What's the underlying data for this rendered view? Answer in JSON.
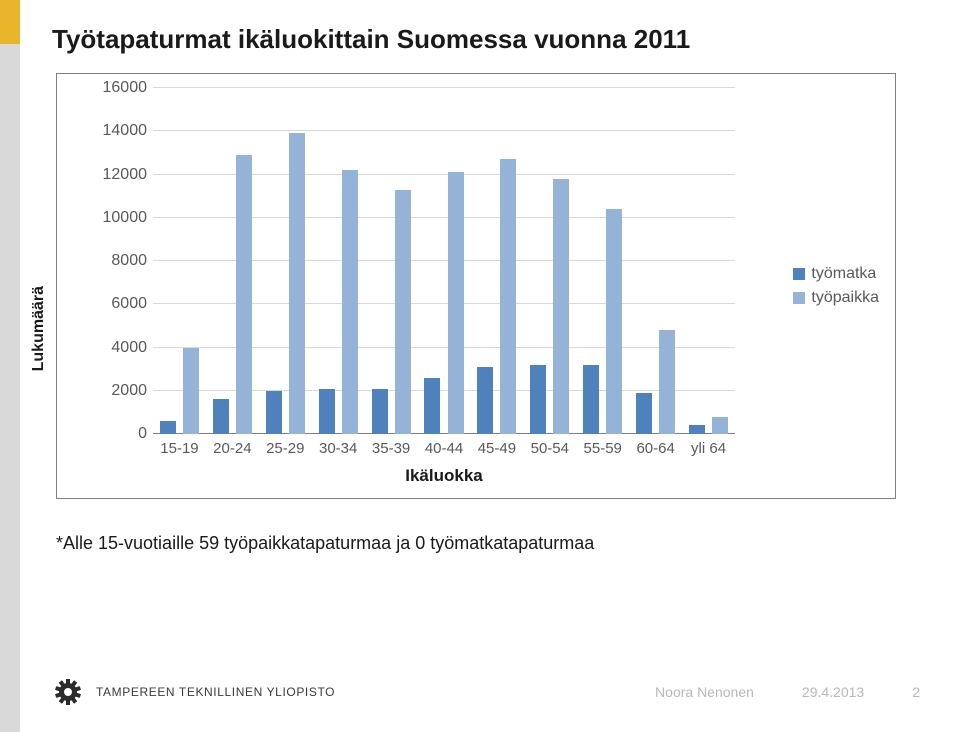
{
  "title": "Työtapaturmat ikäluokittain Suomessa vuonna 2011",
  "chart": {
    "type": "bar",
    "ylabel": "Lukumäärä",
    "xlabel": "Ikäluokka",
    "ylim": [
      0,
      16000
    ],
    "ytick_step": 2000,
    "yticks": [
      0,
      2000,
      4000,
      6000,
      8000,
      10000,
      12000,
      14000,
      16000
    ],
    "categories": [
      "15-19",
      "20-24",
      "25-29",
      "30-34",
      "35-39",
      "40-44",
      "45-49",
      "50-54",
      "55-59",
      "60-64",
      "yli 64"
    ],
    "series": [
      {
        "name": "työmatka",
        "color": "#4f81bd",
        "values": [
          600,
          1600,
          2000,
          2100,
          2100,
          2600,
          3100,
          3200,
          3200,
          1900,
          400
        ]
      },
      {
        "name": "työpaikka",
        "color": "#95b3d7",
        "values": [
          4000,
          12900,
          13900,
          12200,
          11300,
          12100,
          12700,
          11800,
          10400,
          4800,
          800
        ]
      }
    ],
    "legend_position": "right",
    "background_color": "#ffffff",
    "grid_color": "#d9d9d9",
    "axis_color": "#808080",
    "tick_fontsize": 16,
    "tick_color": "#595959",
    "label_fontsize": 17,
    "bar_gap_ratio": 0.18,
    "group_width_ratio": 0.74
  },
  "footnote": "*Alle 15-vuotiaille 59 työpaikkatapaturmaa ja 0 työmatkatapaturmaa",
  "footer": {
    "university": "TAMPEREEN TEKNILLINEN YLIOPISTO",
    "author": "Noora Nenonen",
    "date": "29.4.2013",
    "page": "2",
    "logo_color": "#2b2b2b"
  }
}
